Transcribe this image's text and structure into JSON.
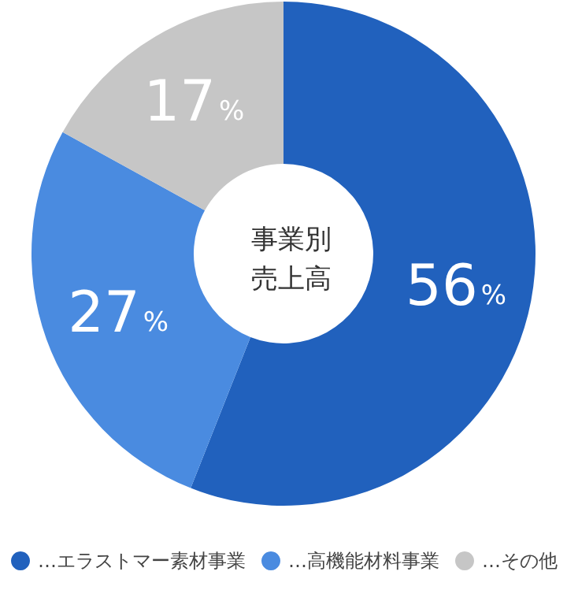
{
  "chart_data": {
    "type": "donut",
    "title": "事業別売上高",
    "categories": [
      "…エラストマー素材事業",
      "…高機能材料事業",
      "…その他"
    ],
    "values": [
      56,
      27,
      17
    ],
    "colors": [
      "#2161bd",
      "#4a8be0",
      "#c6c6c6"
    ],
    "value_labels": [
      "56%",
      "27%",
      "17%"
    ],
    "legend": "bottom"
  }
}
